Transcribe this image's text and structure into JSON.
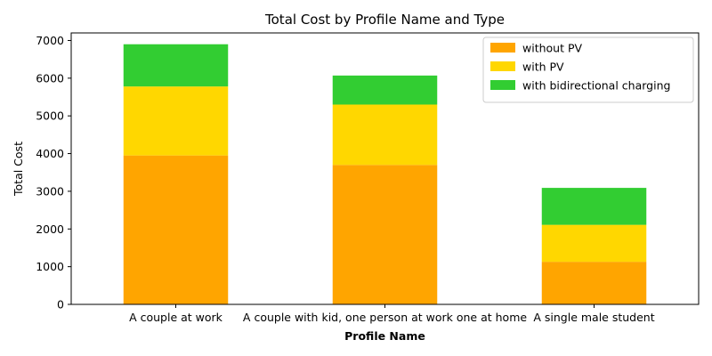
{
  "chart_data": {
    "type": "bar",
    "stacked": true,
    "title": "Total Cost by Profile Name and Type",
    "xlabel": "Profile Name",
    "ylabel": "Total Cost",
    "ylim": [
      0,
      7200
    ],
    "yticks": [
      0,
      1000,
      2000,
      3000,
      4000,
      5000,
      6000,
      7000
    ],
    "grid": false,
    "legend_position": "top-right",
    "categories": [
      "A couple at work",
      "A couple with kid, one person at work one at home",
      "A single male student"
    ],
    "series": [
      {
        "name": "without PV",
        "color": "#FFA500",
        "values": [
          3950,
          3700,
          1130
        ]
      },
      {
        "name": "with PV",
        "color": "#FFD700",
        "values": [
          1830,
          1600,
          980
        ]
      },
      {
        "name": "with bidirectional charging",
        "color": "#32CD32",
        "values": [
          1120,
          770,
          980
        ]
      }
    ]
  }
}
